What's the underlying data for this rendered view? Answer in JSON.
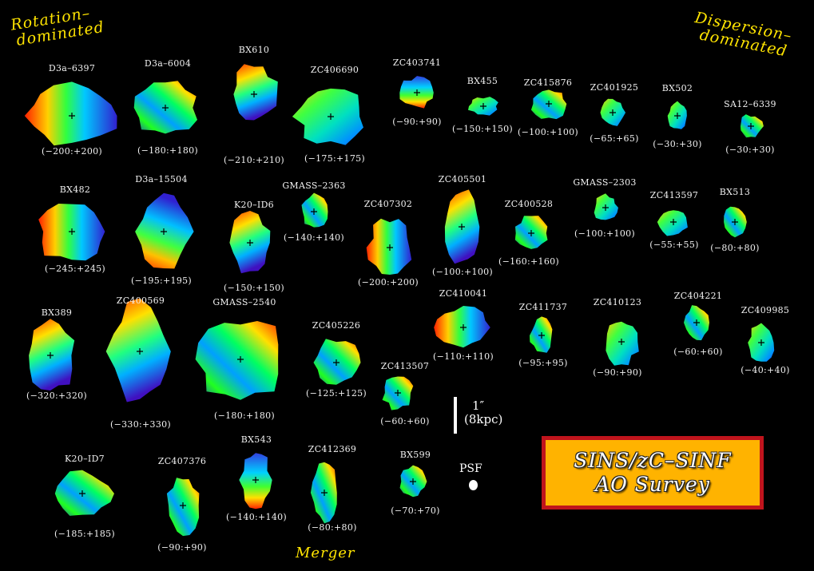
{
  "corners": {
    "left": [
      "Rotation–",
      "dominated"
    ],
    "right": [
      "Dispersion–",
      "dominated"
    ],
    "bottom": "Merger"
  },
  "scale": {
    "angle": "1″",
    "kpc": "(8kpc)"
  },
  "psf_label": "PSF",
  "survey": {
    "line1": "SINS/zC–SINF",
    "line2": "AO Survey"
  },
  "colors": {
    "background": "#000000",
    "highlight": "#ffe400",
    "box_fill": "#ffb300",
    "box_border": "#c0141c"
  },
  "galaxies": [
    {
      "name": "D3a–6397",
      "range": "(−200:+200)",
      "cmap": "red-left"
    },
    {
      "name": "D3a–6004",
      "range": "(−180:+180)",
      "cmap": "mixed"
    },
    {
      "name": "BX610",
      "range": "(−210:+210)",
      "cmap": "red-top"
    },
    {
      "name": "ZC406690",
      "range": "(−175:+175)",
      "cmap": "green"
    },
    {
      "name": "ZC403741",
      "range": "(−90:+90)",
      "cmap": "blue-top"
    },
    {
      "name": "BX455",
      "range": "(−150:+150)",
      "cmap": "green"
    },
    {
      "name": "ZC415876",
      "range": "(−100:+100)",
      "cmap": "mixed"
    },
    {
      "name": "ZC401925",
      "range": "(−65:+65)",
      "cmap": "green"
    },
    {
      "name": "BX502",
      "range": "(−30:+30)",
      "cmap": "green"
    },
    {
      "name": "SA12–6339",
      "range": "(−30:+30)",
      "cmap": "mixed"
    },
    {
      "name": "BX482",
      "range": "(−245:+245)",
      "cmap": "red-left"
    },
    {
      "name": "D3a–15504",
      "range": "(−195:+195)",
      "cmap": "red-bottom"
    },
    {
      "name": "K20–ID6",
      "range": "(−150:+150)",
      "cmap": "red-top"
    },
    {
      "name": "GMASS–2363",
      "range": "(−140:+140)",
      "cmap": "mixed"
    },
    {
      "name": "ZC407302",
      "range": "(−200:+200)",
      "cmap": "red-left"
    },
    {
      "name": "ZC405501",
      "range": "(−100:+100)",
      "cmap": "red-top"
    },
    {
      "name": "ZC400528",
      "range": "(−160:+160)",
      "cmap": "mixed"
    },
    {
      "name": "GMASS–2303",
      "range": "(−100:+100)",
      "cmap": "green"
    },
    {
      "name": "ZC413597",
      "range": "(−55:+55)",
      "cmap": "green"
    },
    {
      "name": "BX513",
      "range": "(−80:+80)",
      "cmap": "mixed"
    },
    {
      "name": "BX389",
      "range": "(−320:+320)",
      "cmap": "red-top"
    },
    {
      "name": "ZC400569",
      "range": "(−330:+330)",
      "cmap": "red-top"
    },
    {
      "name": "GMASS–2540",
      "range": "(−180:+180)",
      "cmap": "mixed"
    },
    {
      "name": "ZC405226",
      "range": "(−125:+125)",
      "cmap": "mixed"
    },
    {
      "name": "ZC413507",
      "range": "(−60:+60)",
      "cmap": "mixed"
    },
    {
      "name": "ZC410041",
      "range": "(−110:+110)",
      "cmap": "red-left"
    },
    {
      "name": "ZC411737",
      "range": "(−95:+95)",
      "cmap": "mixed"
    },
    {
      "name": "ZC410123",
      "range": "(−90:+90)",
      "cmap": "green"
    },
    {
      "name": "ZC404221",
      "range": "(−60:+60)",
      "cmap": "mixed"
    },
    {
      "name": "ZC409985",
      "range": "(−40:+40)",
      "cmap": "green"
    },
    {
      "name": "K20–ID7",
      "range": "(−185:+185)",
      "cmap": "mixed"
    },
    {
      "name": "ZC407376",
      "range": "(−90:+90)",
      "cmap": "mixed"
    },
    {
      "name": "BX543",
      "range": "(−140:+140)",
      "cmap": "blue-top"
    },
    {
      "name": "ZC412369",
      "range": "(−80:+80)",
      "cmap": "mixed"
    },
    {
      "name": "BX599",
      "range": "(−70:+70)",
      "cmap": "mixed"
    }
  ]
}
